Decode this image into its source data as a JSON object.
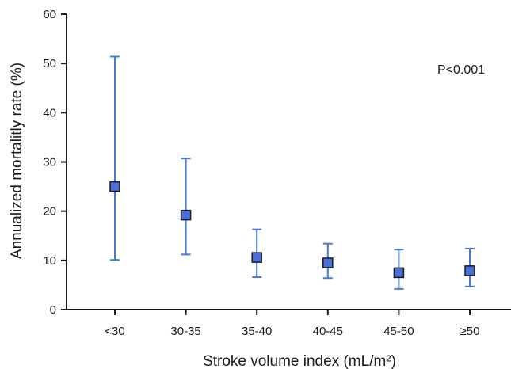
{
  "chart_data": {
    "type": "scatter",
    "categories": [
      "<30",
      "30-35",
      "35-40",
      "40-45",
      "45-50",
      "≥50"
    ],
    "values": [
      25.0,
      19.2,
      10.6,
      9.5,
      7.5,
      7.9
    ],
    "lower": [
      10.1,
      11.2,
      6.6,
      6.4,
      4.2,
      4.7
    ],
    "upper": [
      51.4,
      30.7,
      16.3,
      13.4,
      12.2,
      12.4
    ],
    "xlabel": "Stroke volume index (mL/m²)",
    "ylabel": "Annualized mortalitly rate (%)",
    "ylim": [
      0,
      60
    ],
    "yticks": [
      0,
      10,
      20,
      30,
      40,
      50,
      60
    ],
    "annotation": "P<0.001",
    "grid": false,
    "marker_color": "#4a6fd8",
    "errorbar_color": "#4a78d4"
  }
}
